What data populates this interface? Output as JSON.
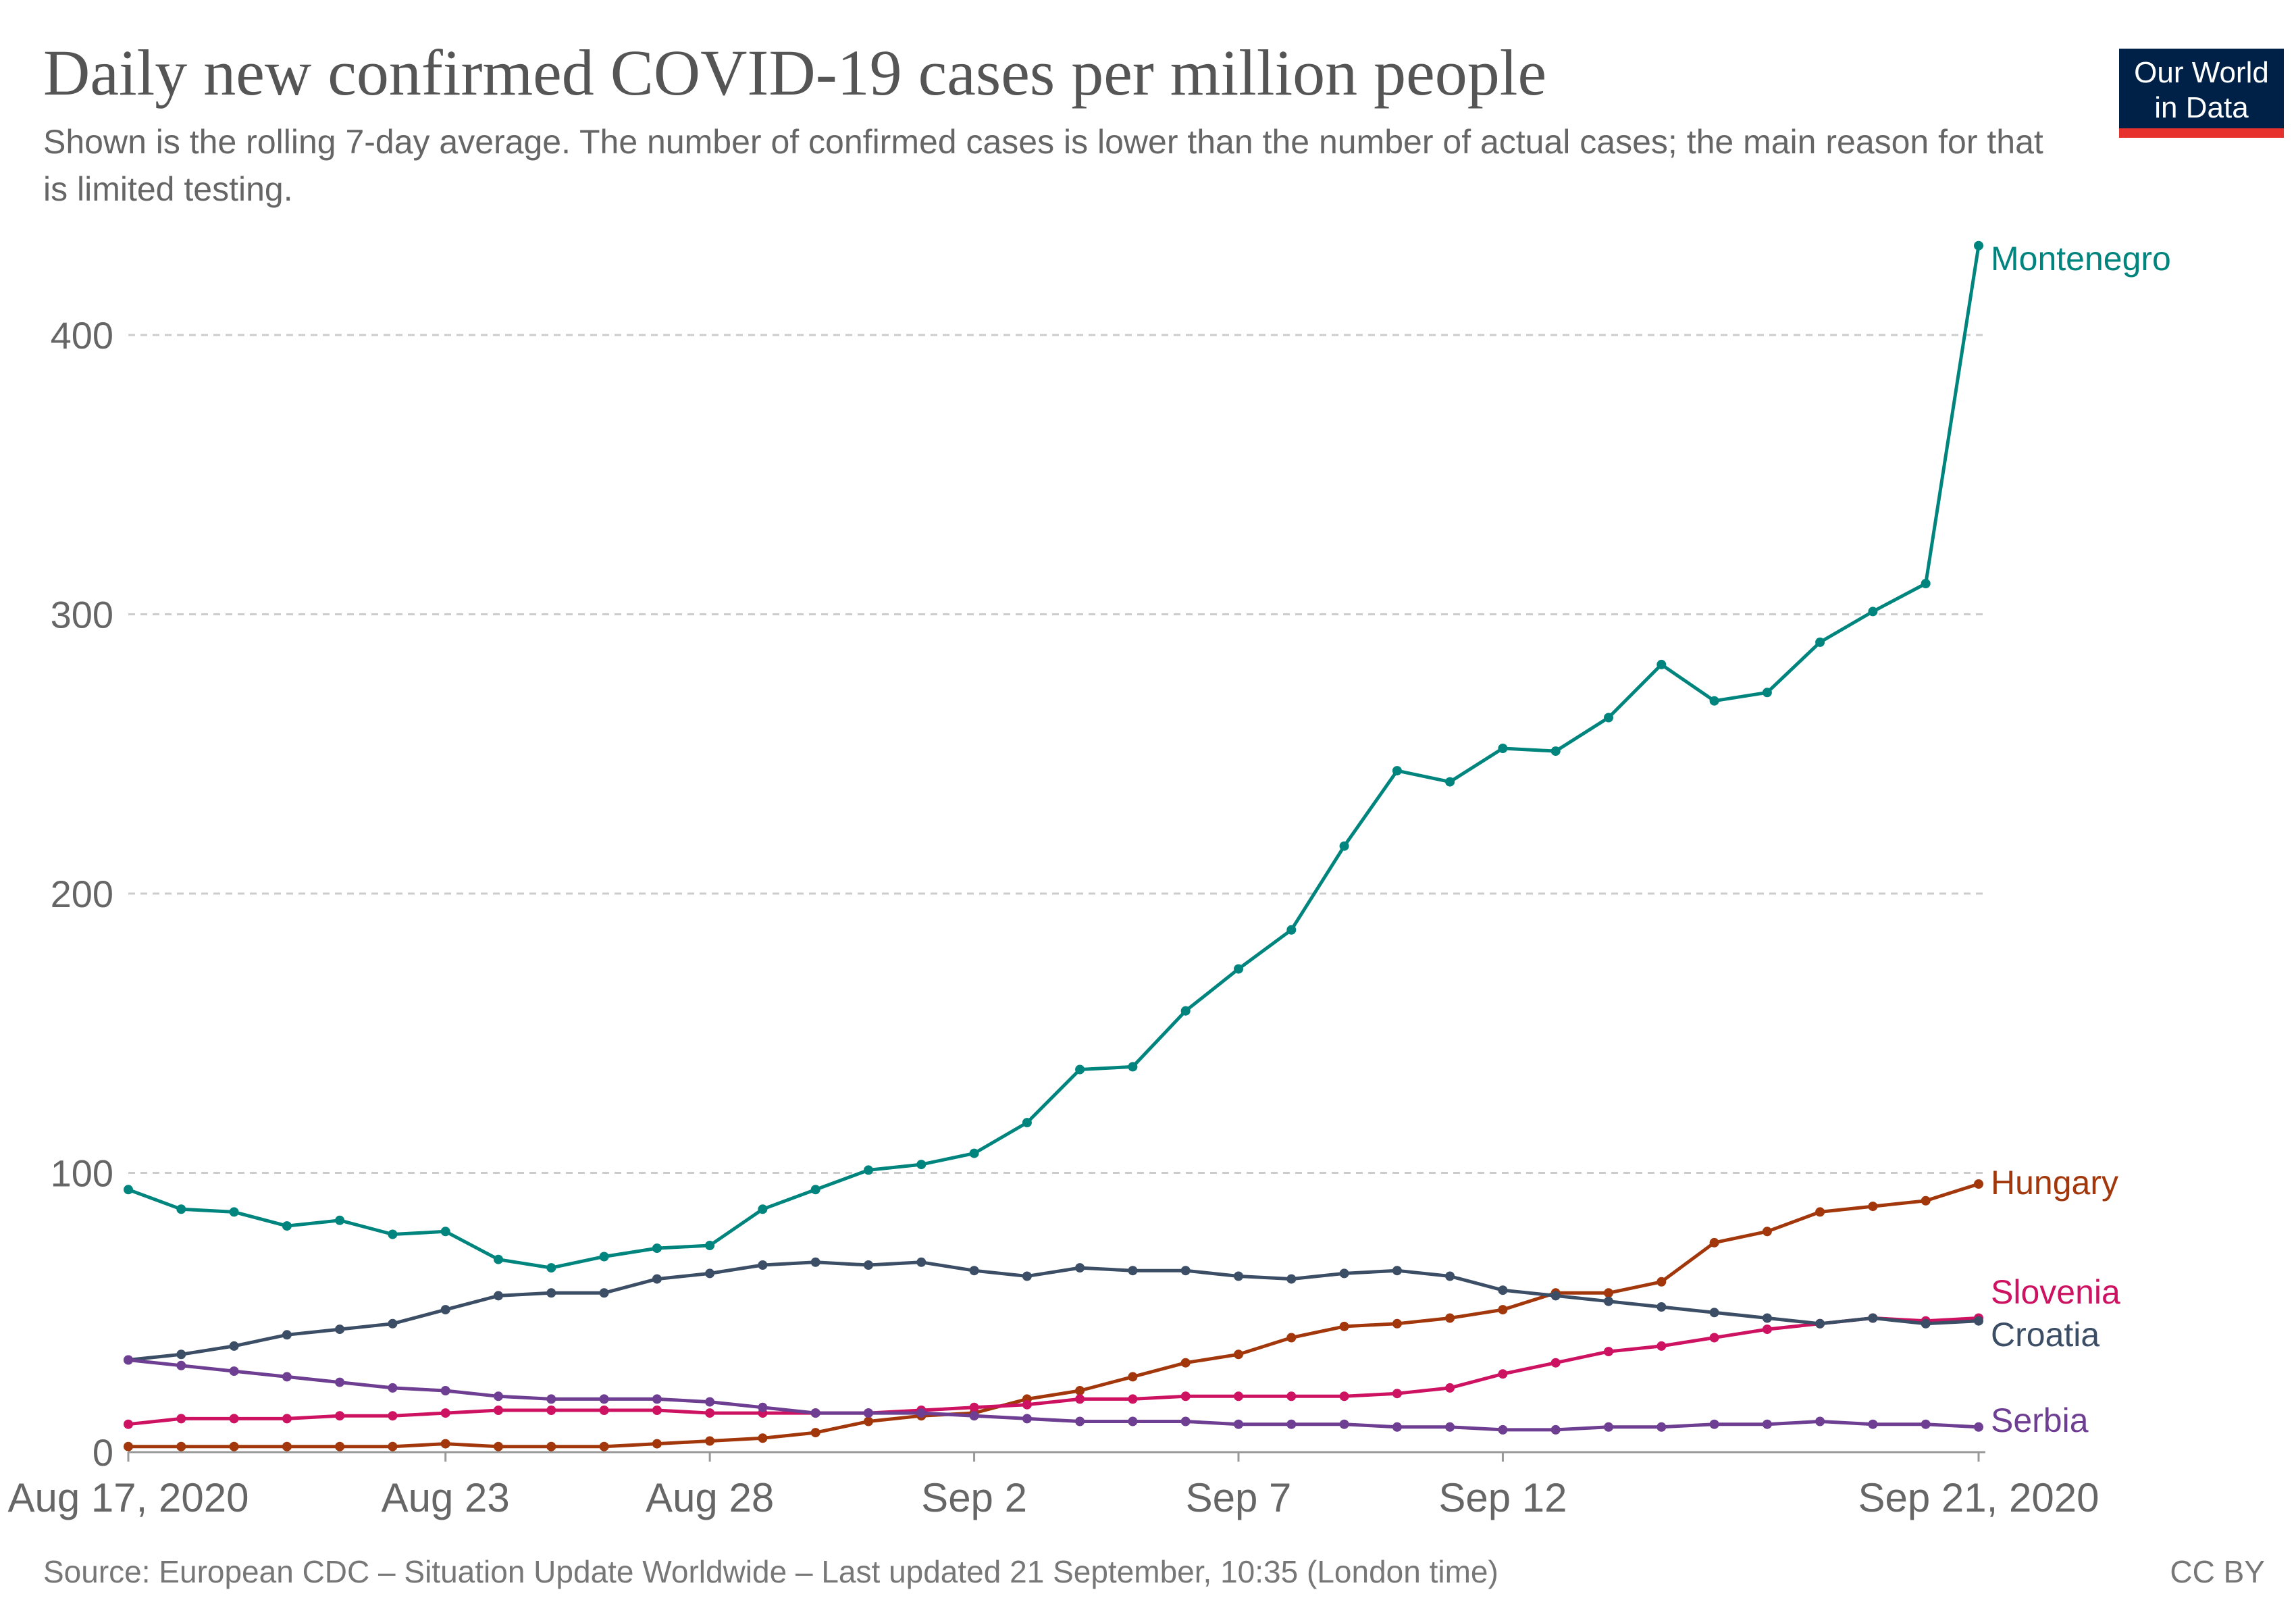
{
  "title": "Daily new confirmed COVID-19 cases per million people",
  "subtitle": "Shown is the rolling 7-day average. The number of confirmed cases is lower than the number of actual cases; the main reason for that is limited testing.",
  "logo": {
    "line1": "Our World",
    "line2": "in Data",
    "bg_color": "#002147",
    "accent_color": "#e6312c"
  },
  "footer": {
    "source": "Source: European CDC – Situation Update Worldwide – Last updated 21 September, 10:35 (London time)",
    "license": "CC BY"
  },
  "chart_data": {
    "type": "line",
    "title": "Daily new confirmed COVID-19 cases per million people",
    "xlabel": "",
    "ylabel": "",
    "x_start": "2020-08-17",
    "x_end": "2020-09-21",
    "x_tick_labels": [
      {
        "date": "2020-08-17",
        "label": "Aug 17, 2020"
      },
      {
        "date": "2020-08-23",
        "label": "Aug 23"
      },
      {
        "date": "2020-08-28",
        "label": "Aug 28"
      },
      {
        "date": "2020-09-02",
        "label": "Sep 2"
      },
      {
        "date": "2020-09-07",
        "label": "Sep 7"
      },
      {
        "date": "2020-09-12",
        "label": "Sep 12"
      },
      {
        "date": "2020-09-21",
        "label": "Sep 21, 2020"
      }
    ],
    "ylim": [
      0,
      440
    ],
    "y_ticks": [
      0,
      100,
      200,
      300,
      400
    ],
    "grid": "horizontal dashed",
    "legend": "labels at line ends (right)",
    "series": [
      {
        "name": "Montenegro",
        "color": "#00847e",
        "values": [
          94,
          87,
          86,
          81,
          83,
          78,
          79,
          69,
          66,
          70,
          73,
          74,
          87,
          94,
          101,
          103,
          107,
          118,
          137,
          138,
          158,
          173,
          187,
          217,
          244,
          240,
          252,
          251,
          263,
          282,
          269,
          272,
          290,
          301,
          311,
          432
        ]
      },
      {
        "name": "Hungary",
        "color": "#a2370c",
        "values": [
          2,
          2,
          2,
          2,
          2,
          2,
          3,
          2,
          2,
          2,
          3,
          4,
          5,
          7,
          11,
          13,
          14,
          19,
          22,
          27,
          32,
          35,
          41,
          45,
          46,
          48,
          51,
          57,
          57,
          61,
          75,
          79,
          86,
          88,
          90,
          96
        ]
      },
      {
        "name": "Slovenia",
        "color": "#ce1262",
        "values": [
          10,
          12,
          12,
          12,
          13,
          13,
          14,
          15,
          15,
          15,
          15,
          14,
          14,
          14,
          14,
          15,
          16,
          17,
          19,
          19,
          20,
          20,
          20,
          20,
          21,
          23,
          28,
          32,
          36,
          38,
          41,
          44,
          46,
          48,
          47,
          48
        ]
      },
      {
        "name": "Croatia",
        "color": "#3c4e66",
        "values": [
          33,
          35,
          38,
          42,
          44,
          46,
          51,
          56,
          57,
          57,
          62,
          64,
          67,
          68,
          67,
          68,
          65,
          63,
          66,
          65,
          65,
          63,
          62,
          64,
          65,
          63,
          58,
          56,
          54,
          52,
          50,
          48,
          46,
          48,
          46,
          47
        ]
      },
      {
        "name": "Serbia",
        "color": "#6d3e91",
        "values": [
          33,
          31,
          29,
          27,
          25,
          23,
          22,
          20,
          19,
          19,
          19,
          18,
          16,
          14,
          14,
          14,
          13,
          12,
          11,
          11,
          11,
          10,
          10,
          10,
          9,
          9,
          8,
          8,
          9,
          9,
          10,
          10,
          11,
          10,
          10,
          9
        ]
      }
    ]
  }
}
